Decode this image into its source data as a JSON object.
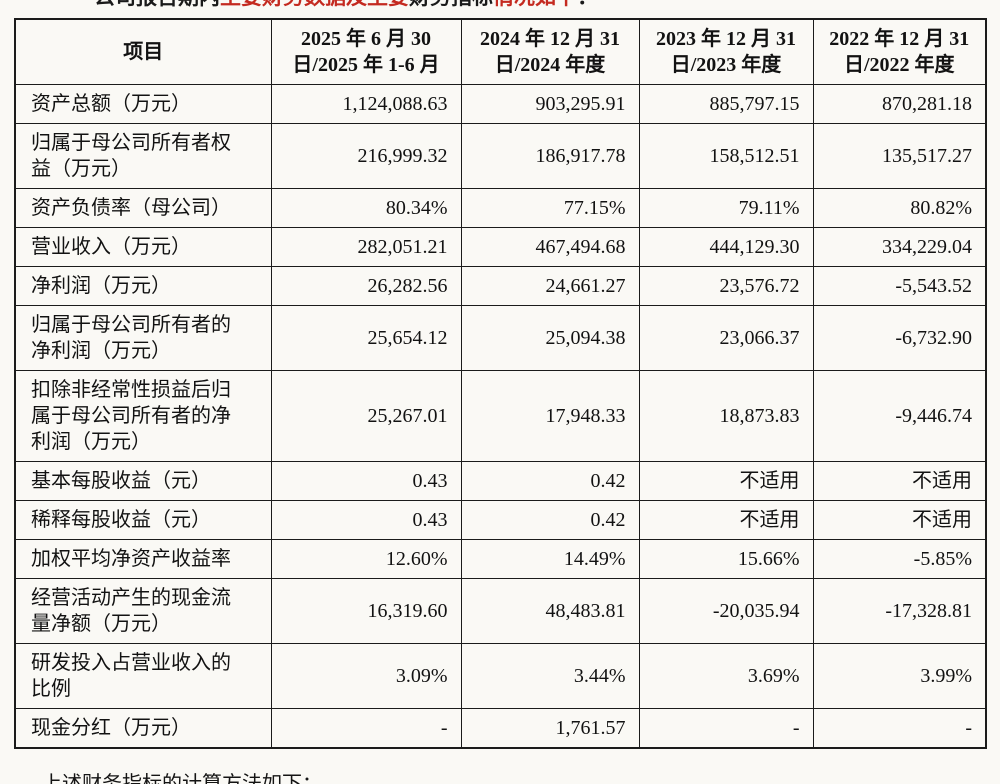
{
  "page": {
    "top_clipped_text_segments": [
      {
        "text": "公司报告期内",
        "color": "#1a1a1a"
      },
      {
        "text": "主要财务数据及主要",
        "color": "#c42a20"
      },
      {
        "text": "财务指标",
        "color": "#1a1a1a"
      },
      {
        "text": "情况如下",
        "color": "#c42a20"
      },
      {
        "text": "：",
        "color": "#1a1a1a"
      }
    ],
    "bottom_clipped_text": "上述财务指标的计算方法如下："
  },
  "table": {
    "header": {
      "item_label": "项目",
      "columns": [
        {
          "line1": "2025 年 6 月 30",
          "line2": "日/2025 年 1-6 月"
        },
        {
          "line1": "2024 年 12 月 31",
          "line2": "日/2024 年度"
        },
        {
          "line1": "2023 年 12 月 31",
          "line2": "日/2023 年度"
        },
        {
          "line1": "2022 年 12 月 31",
          "line2": "日/2022 年度"
        }
      ]
    },
    "rows": [
      {
        "label": "资产总额（万元）",
        "values": [
          "1,124,088.63",
          "903,295.91",
          "885,797.15",
          "870,281.18"
        ]
      },
      {
        "label": "归属于母公司所有者权益（万元）",
        "values": [
          "216,999.32",
          "186,917.78",
          "158,512.51",
          "135,517.27"
        ]
      },
      {
        "label": "资产负债率（母公司）",
        "values": [
          "80.34%",
          "77.15%",
          "79.11%",
          "80.82%"
        ]
      },
      {
        "label": "营业收入（万元）",
        "values": [
          "282,051.21",
          "467,494.68",
          "444,129.30",
          "334,229.04"
        ]
      },
      {
        "label": "净利润（万元）",
        "values": [
          "26,282.56",
          "24,661.27",
          "23,576.72",
          "-5,543.52"
        ]
      },
      {
        "label": "归属于母公司所有者的净利润（万元）",
        "values": [
          "25,654.12",
          "25,094.38",
          "23,066.37",
          "-6,732.90"
        ]
      },
      {
        "label": "扣除非经常性损益后归属于母公司所有者的净利润（万元）",
        "values": [
          "25,267.01",
          "17,948.33",
          "18,873.83",
          "-9,446.74"
        ]
      },
      {
        "label": "基本每股收益（元）",
        "values": [
          "0.43",
          "0.42",
          "不适用",
          "不适用"
        ]
      },
      {
        "label": "稀释每股收益（元）",
        "values": [
          "0.43",
          "0.42",
          "不适用",
          "不适用"
        ]
      },
      {
        "label": "加权平均净资产收益率",
        "values": [
          "12.60%",
          "14.49%",
          "15.66%",
          "-5.85%"
        ]
      },
      {
        "label": "经营活动产生的现金流量净额（万元）",
        "values": [
          "16,319.60",
          "48,483.81",
          "-20,035.94",
          "-17,328.81"
        ]
      },
      {
        "label": "研发投入占营业收入的比例",
        "values": [
          "3.09%",
          "3.44%",
          "3.69%",
          "3.99%"
        ]
      },
      {
        "label": "现金分红（万元）",
        "values": [
          "-",
          "1,761.57",
          "-",
          "-"
        ]
      }
    ]
  }
}
